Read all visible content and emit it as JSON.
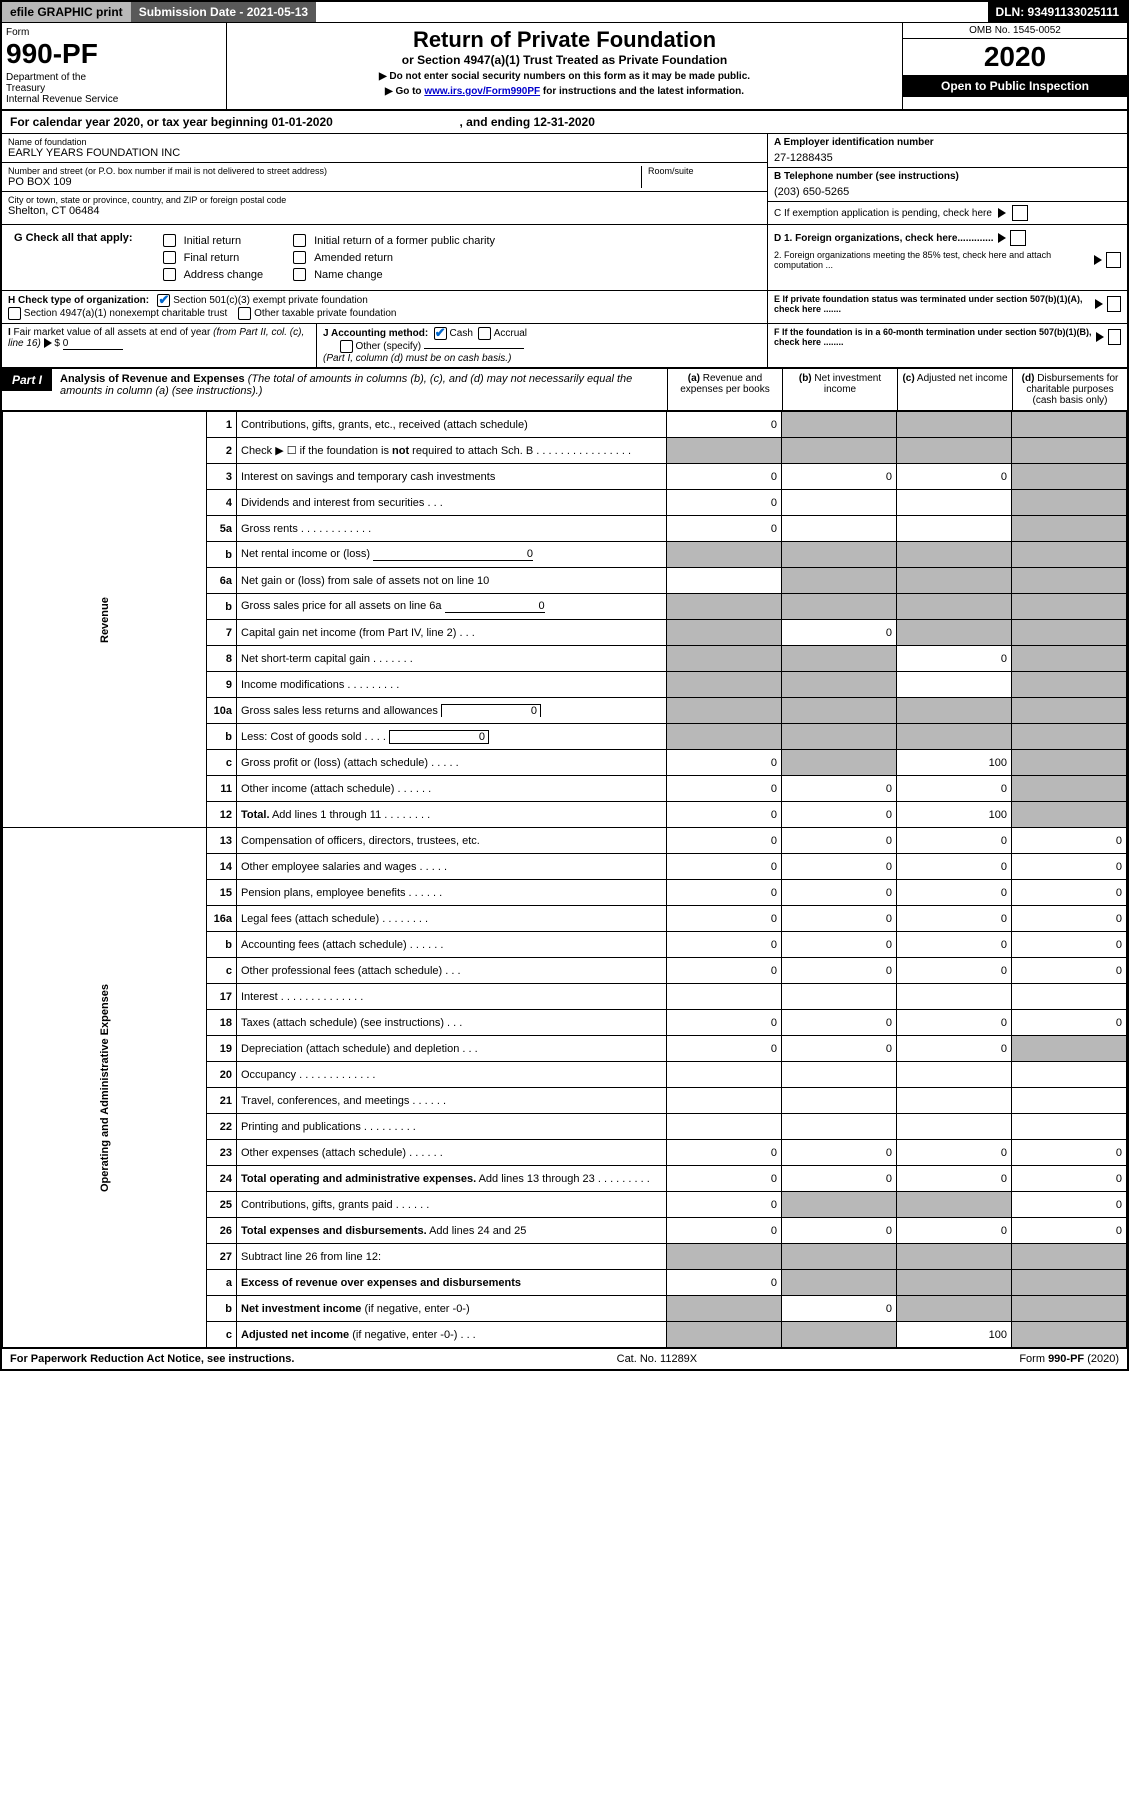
{
  "top": {
    "efile": "efile GRAPHIC print",
    "subdate_label": "Submission Date - 2021-05-13",
    "dln": "DLN: 93491133025111"
  },
  "header": {
    "form_label": "Form",
    "form_num": "990-PF",
    "dept": "Department of the Treasury\nInternal Revenue Service",
    "title": "Return of Private Foundation",
    "subtitle": "or Section 4947(a)(1) Trust Treated as Private Foundation",
    "instr1": "▶ Do not enter social security numbers on this form as it may be made public.",
    "instr2_pre": "▶ Go to ",
    "instr2_link": "www.irs.gov/Form990PF",
    "instr2_post": " for instructions and the latest information.",
    "omb": "OMB No. 1545-0052",
    "year": "2020",
    "open": "Open to Public Inspection"
  },
  "cal": {
    "text_a": "For calendar year 2020, or tax year beginning 01-01-2020",
    "text_b": ", and ending 12-31-2020"
  },
  "info": {
    "name_label": "Name of foundation",
    "name": "EARLY YEARS FOUNDATION INC",
    "addr_label": "Number and street (or P.O. box number if mail is not delivered to street address)",
    "addr": "PO BOX 109",
    "room_label": "Room/suite",
    "city_label": "City or town, state or province, country, and ZIP or foreign postal code",
    "city": "Shelton, CT  06484",
    "ein_label": "A Employer identification number",
    "ein": "27-1288435",
    "phone_label": "B Telephone number (see instructions)",
    "phone": "(203) 650-5265",
    "c_label": "C If exemption application is pending, check here",
    "d1": "D 1. Foreign organizations, check here.............",
    "d2": "2. Foreign organizations meeting the 85% test, check here and attach computation ...",
    "e_label": "E  If private foundation status was terminated under section 507(b)(1)(A), check here .......",
    "f_label": "F  If the foundation is in a 60-month termination under section 507(b)(1)(B), check here ........"
  },
  "g": {
    "label": "G Check all that apply:",
    "opts": [
      "Initial return",
      "Final return",
      "Address change",
      "Initial return of a former public charity",
      "Amended return",
      "Name change"
    ]
  },
  "h": {
    "label": "H Check type of organization:",
    "o1": "Section 501(c)(3) exempt private foundation",
    "o2": "Section 4947(a)(1) nonexempt charitable trust",
    "o3": "Other taxable private foundation"
  },
  "i": {
    "label": "I Fair market value of all assets at end of year (from Part II, col. (c), line 16) ▶ $",
    "val": "0"
  },
  "j": {
    "label": "J Accounting method:",
    "cash": "Cash",
    "accrual": "Accrual",
    "other": "Other (specify)",
    "note": "(Part I, column (d) must be on cash basis.)"
  },
  "part1": {
    "tag": "Part I",
    "title": "Analysis of Revenue and Expenses",
    "note": " (The total of amounts in columns (b), (c), and (d) may not necessarily equal the amounts in column (a) (see instructions).)",
    "col_a": "(a)   Revenue and expenses per books",
    "col_b": "(b)   Net investment income",
    "col_c": "(c)   Adjusted net income",
    "col_d": "(d)   Disbursements for charitable purposes (cash basis only)"
  },
  "vert": {
    "rev": "Revenue",
    "exp": "Operating and Administrative Expenses"
  },
  "rows": [
    {
      "n": "1",
      "d": "Contributions, gifts, grants, etc., received (attach schedule)",
      "a": "0",
      "b": "",
      "c": "",
      "dd": "",
      "sb": true,
      "sc": true,
      "sd": true
    },
    {
      "n": "2",
      "d": "Check ▶ ☐ if the foundation is <b>not</b> required to attach Sch. B  .  .  .  .  .  .  .  .  .  .  .  .  .  .  .  .",
      "a": "",
      "b": "",
      "c": "",
      "dd": "",
      "sa": true,
      "sb": true,
      "sc": true,
      "sd": true
    },
    {
      "n": "3",
      "d": "Interest on savings and temporary cash investments",
      "a": "0",
      "b": "0",
      "c": "0",
      "dd": "",
      "sd": true
    },
    {
      "n": "4",
      "d": "Dividends and interest from securities  .  .  .",
      "a": "0",
      "b": "",
      "c": "",
      "dd": "",
      "sd": true
    },
    {
      "n": "5a",
      "d": "Gross rents  .  .  .  .  .  .  .  .  .  .  .  .",
      "a": "0",
      "b": "",
      "c": "",
      "dd": "",
      "sd": true
    },
    {
      "n": "b",
      "d": "Net rental income or (loss) <span class='underline' style='min-width:160px;text-align:right'>0</span>",
      "a": "",
      "b": "",
      "c": "",
      "dd": "",
      "sa": true,
      "sb": true,
      "sc": true,
      "sd": true
    },
    {
      "n": "6a",
      "d": "Net gain or (loss) from sale of assets not on line 10",
      "a": "",
      "b": "",
      "c": "",
      "dd": "",
      "sb": true,
      "sc": true,
      "sd": true
    },
    {
      "n": "b",
      "d": "Gross sales price for all assets on line 6a <span class='underline' style='min-width:100px;text-align:right'>0</span>",
      "a": "",
      "b": "",
      "c": "",
      "dd": "",
      "sa": true,
      "sb": true,
      "sc": true,
      "sd": true
    },
    {
      "n": "7",
      "d": "Capital gain net income (from Part IV, line 2)  .  .  .",
      "a": "",
      "b": "0",
      "c": "",
      "dd": "",
      "sa": true,
      "sc": true,
      "sd": true
    },
    {
      "n": "8",
      "d": "Net short-term capital gain  .  .  .  .  .  .  .",
      "a": "",
      "b": "",
      "c": "0",
      "dd": "",
      "sa": true,
      "sb": true,
      "sd": true
    },
    {
      "n": "9",
      "d": "Income modifications  .  .  .  .  .  .  .  .  .",
      "a": "",
      "b": "",
      "c": "",
      "dd": "",
      "sa": true,
      "sb": true,
      "sd": true
    },
    {
      "n": "10a",
      "d": "Gross sales less returns and allowances <span style='display:inline-block;border:1px solid #000;border-bottom:none;width:100px;text-align:right;padding:0 3px'>0</span>",
      "a": "",
      "b": "",
      "c": "",
      "dd": "",
      "sa": true,
      "sb": true,
      "sc": true,
      "sd": true
    },
    {
      "n": "b",
      "d": "Less: Cost of goods sold  .  .  .  . <span style='display:inline-block;border:1px solid #000;width:100px;text-align:right;padding:0 3px'>0</span>",
      "a": "",
      "b": "",
      "c": "",
      "dd": "",
      "sa": true,
      "sb": true,
      "sc": true,
      "sd": true
    },
    {
      "n": "c",
      "d": "Gross profit or (loss) (attach schedule)  .  .  .  .  .",
      "a": "0",
      "b": "",
      "c": "100",
      "dd": "",
      "sb": true,
      "sd": true
    },
    {
      "n": "11",
      "d": "Other income (attach schedule)   .  .  .  .  .  .",
      "a": "0",
      "b": "0",
      "c": "0",
      "dd": "",
      "sd": true
    },
    {
      "n": "12",
      "d": "<b>Total.</b> Add lines 1 through 11  .  .  .  .  .  .  .  .",
      "a": "0",
      "b": "0",
      "c": "100",
      "dd": "",
      "sd": true
    },
    {
      "n": "13",
      "d": "Compensation of officers, directors, trustees, etc.",
      "a": "0",
      "b": "0",
      "c": "0",
      "dd": "0"
    },
    {
      "n": "14",
      "d": "Other employee salaries and wages  .  .  .  .  .",
      "a": "0",
      "b": "0",
      "c": "0",
      "dd": "0"
    },
    {
      "n": "15",
      "d": "Pension plans, employee benefits  .  .  .  .  .  .",
      "a": "0",
      "b": "0",
      "c": "0",
      "dd": "0"
    },
    {
      "n": "16a",
      "d": "Legal fees (attach schedule)  .  .  .  .  .  .  .  .",
      "a": "0",
      "b": "0",
      "c": "0",
      "dd": "0"
    },
    {
      "n": "b",
      "d": "Accounting fees (attach schedule)  .  .  .  .  .  .",
      "a": "0",
      "b": "0",
      "c": "0",
      "dd": "0"
    },
    {
      "n": "c",
      "d": "Other professional fees (attach schedule)   .  .  .",
      "a": "0",
      "b": "0",
      "c": "0",
      "dd": "0"
    },
    {
      "n": "17",
      "d": "Interest  .  .  .  .  .  .  .  .  .  .  .  .  .  .",
      "a": "",
      "b": "",
      "c": "",
      "dd": ""
    },
    {
      "n": "18",
      "d": "Taxes (attach schedule) (see instructions)   .  .  .",
      "a": "0",
      "b": "0",
      "c": "0",
      "dd": "0"
    },
    {
      "n": "19",
      "d": "Depreciation (attach schedule) and depletion   .  .  .",
      "a": "0",
      "b": "0",
      "c": "0",
      "dd": "",
      "sd": true
    },
    {
      "n": "20",
      "d": "Occupancy  .  .  .  .  .  .  .  .  .  .  .  .  .",
      "a": "",
      "b": "",
      "c": "",
      "dd": ""
    },
    {
      "n": "21",
      "d": "Travel, conferences, and meetings  .  .  .  .  .  .",
      "a": "",
      "b": "",
      "c": "",
      "dd": ""
    },
    {
      "n": "22",
      "d": "Printing and publications  .  .  .  .  .  .  .  .  .",
      "a": "",
      "b": "",
      "c": "",
      "dd": ""
    },
    {
      "n": "23",
      "d": "Other expenses (attach schedule)  .  .  .  .  .  .",
      "a": "0",
      "b": "0",
      "c": "0",
      "dd": "0"
    },
    {
      "n": "24",
      "d": "<b>Total operating and administrative expenses.</b> Add lines 13 through 23   .  .  .  .  .  .  .  .  .",
      "a": "0",
      "b": "0",
      "c": "0",
      "dd": "0"
    },
    {
      "n": "25",
      "d": "Contributions, gifts, grants paid   .  .  .  .  .  .",
      "a": "0",
      "b": "",
      "c": "",
      "dd": "0",
      "sb": true,
      "sc": true
    },
    {
      "n": "26",
      "d": "<b>Total expenses and disbursements.</b> Add lines 24 and 25",
      "a": "0",
      "b": "0",
      "c": "0",
      "dd": "0"
    },
    {
      "n": "27",
      "d": "Subtract line 26 from line 12:",
      "a": "",
      "b": "",
      "c": "",
      "dd": "",
      "sa": true,
      "sb": true,
      "sc": true,
      "sd": true
    },
    {
      "n": "a",
      "d": "<b>Excess of revenue over expenses and disbursements</b>",
      "a": "0",
      "b": "",
      "c": "",
      "dd": "",
      "sb": true,
      "sc": true,
      "sd": true
    },
    {
      "n": "b",
      "d": "<b>Net investment income</b> (if negative, enter -0-)",
      "a": "",
      "b": "0",
      "c": "",
      "dd": "",
      "sa": true,
      "sc": true,
      "sd": true
    },
    {
      "n": "c",
      "d": "<b>Adjusted net income</b> (if negative, enter -0-)  .  .  .",
      "a": "",
      "b": "",
      "c": "100",
      "dd": "",
      "sa": true,
      "sb": true,
      "sd": true
    }
  ],
  "footer": {
    "left": "For Paperwork Reduction Act Notice, see instructions.",
    "mid": "Cat. No. 11289X",
    "right": "Form 990-PF (2020)"
  },
  "colors": {
    "shade": "#b8b8b8",
    "dark": "#595959",
    "link": "#0000cd"
  }
}
